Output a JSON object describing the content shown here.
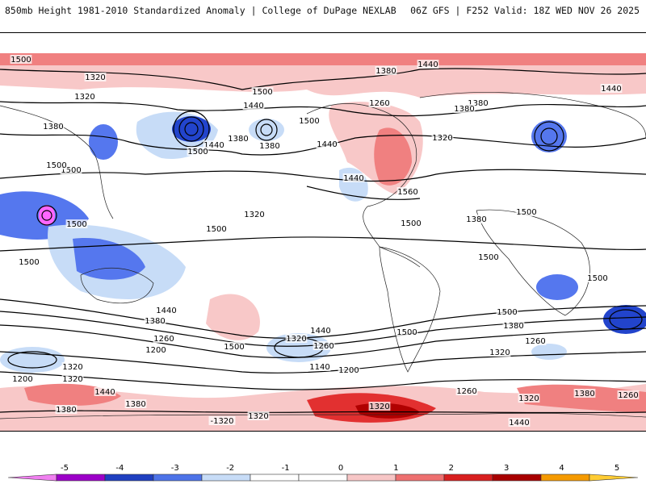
{
  "header": {
    "left": "850mb Height 1981-2010 Standardized Anomaly | College of DuPage NEXLAB",
    "right": "06Z GFS | F252 Valid: 18Z WED NOV 26 2025"
  },
  "map": {
    "variable": "850mb geopotential height (m) with standardized anomaly shading",
    "contour_labels": [
      "1500",
      "1320",
      "1320",
      "1440",
      "1380",
      "1440",
      "1500",
      "1260",
      "1380",
      "1440",
      "1500",
      "1380",
      "1500",
      "1440",
      "1380",
      "1380",
      "1320",
      "1440",
      "1440",
      "1500",
      "1560",
      "1500",
      "1380",
      "1320",
      "1380",
      "1500",
      "1500",
      "1500",
      "1500",
      "1500",
      "1500",
      "1500",
      "1500",
      "1440",
      "1380",
      "1260",
      "1200",
      "1500",
      "1320",
      "1260",
      "1140",
      "1200",
      "1440",
      "1380",
      "1320",
      "1500",
      "1260",
      "1320",
      "1200",
      "1320",
      "1440",
      "1380",
      "1380",
      "1320",
      "1260",
      "1320",
      "1380",
      "1440",
      "-1320",
      "1320",
      "1260"
    ],
    "colors": {
      "neg5": "#ff66ff",
      "neg4": "#9900cc",
      "neg3": "#2244cc",
      "neg2": "#5577ee",
      "neg1": "#c7dcf7",
      "pos1": "#f8c8c8",
      "pos2": "#f08080",
      "pos3": "#e23030",
      "pos4": "#b00000",
      "pos5": "#ff9900"
    }
  },
  "legend": {
    "ticks": [
      "-5",
      "-4",
      "-3",
      "-2",
      "-1",
      "0",
      "1",
      "2",
      "3",
      "4",
      "5"
    ],
    "bins": [
      "#f07ff0",
      "#9c00c8",
      "#1f3fc0",
      "#4d73e8",
      "#c7dcf7",
      "#ffffff",
      "#ffffff",
      "#f7c6c6",
      "#ee7070",
      "#d81f1f",
      "#a80000",
      "#f59a00",
      "#ffcc33"
    ]
  }
}
